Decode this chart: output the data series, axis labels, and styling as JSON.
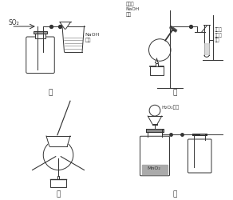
{
  "bg_color": "#ffffff",
  "line_color": "#333333",
  "label_jia": "甲",
  "label_yi": "乙",
  "label_bing": "丙",
  "label_ding": "丁",
  "so2_label": "SO₂",
  "naoh_label": "NaOH\n溶液",
  "yi_text_left": "溴乙烷\nNaOH\n乙醇",
  "yi_text_right": "高锰酸\n钾酸性\n溶液",
  "ding_h2o2": "H₂O₂溶液",
  "ding_mno2": "MnO₂"
}
